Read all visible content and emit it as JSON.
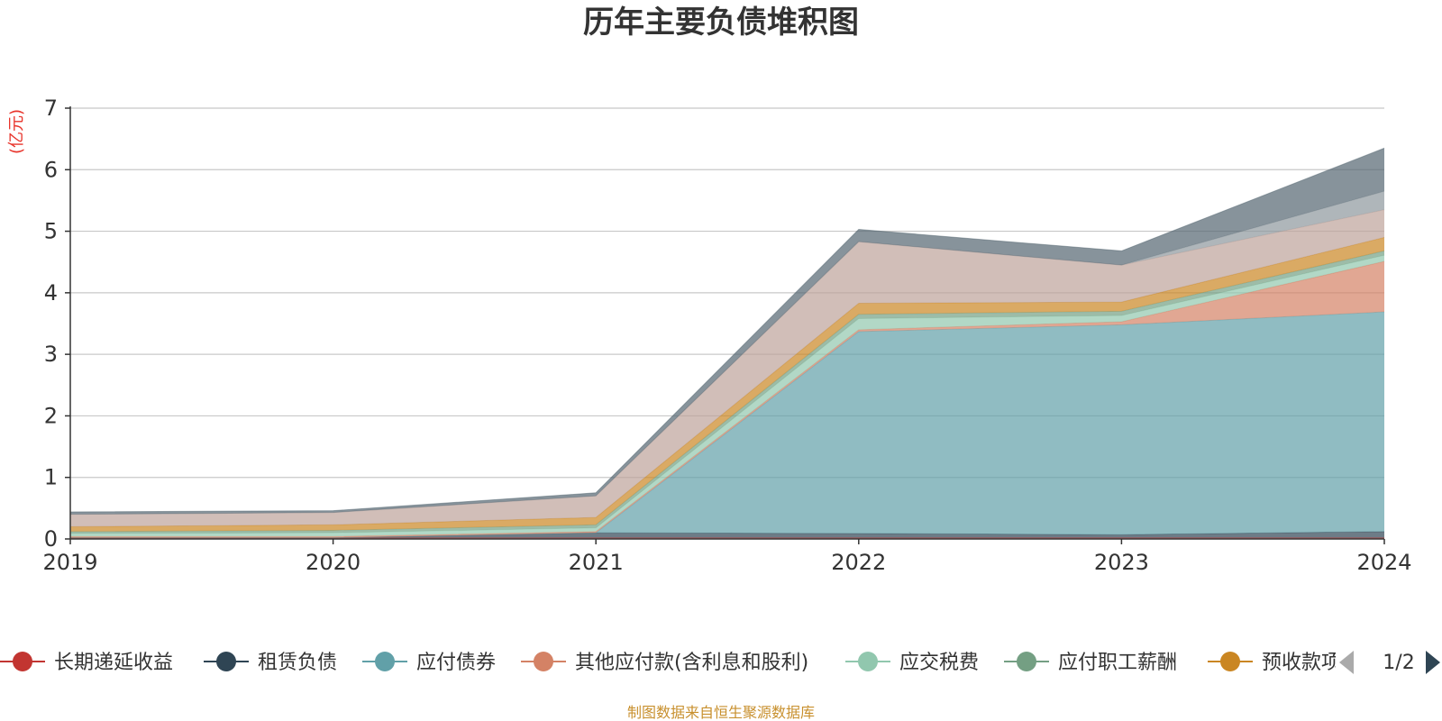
{
  "chart_data": {
    "type": "area",
    "stacked": true,
    "title": "历年主要负债堆积图",
    "unit_label": "(亿元)",
    "x": [
      "2019",
      "2020",
      "2021",
      "2022",
      "2023",
      "2024"
    ],
    "ylim": [
      0,
      7
    ],
    "yticks": [
      0,
      1,
      2,
      3,
      4,
      5,
      6,
      7
    ],
    "grid": true,
    "legend_position": "bottom",
    "series": [
      {
        "name": "长期递延收益",
        "color": "#c23531",
        "values": [
          0.02,
          0.02,
          0.02,
          0.02,
          0.02,
          0.02
        ]
      },
      {
        "name": "租赁负债",
        "color": "#2f4554",
        "values": [
          0.0,
          0.0,
          0.08,
          0.07,
          0.05,
          0.1
        ]
      },
      {
        "name": "应付债券",
        "color": "#61a0a8",
        "values": [
          0.0,
          0.0,
          0.0,
          3.28,
          3.41,
          3.57
        ]
      },
      {
        "name": "其他应付款(含利息和股利)",
        "color": "#d48265",
        "values": [
          0.02,
          0.02,
          0.02,
          0.03,
          0.05,
          0.82
        ]
      },
      {
        "name": "应交税费",
        "color": "#91c7ae",
        "values": [
          0.05,
          0.06,
          0.06,
          0.18,
          0.1,
          0.1
        ]
      },
      {
        "name": "应付职工薪酬",
        "color": "#749f83",
        "values": [
          0.03,
          0.04,
          0.05,
          0.07,
          0.07,
          0.07
        ]
      },
      {
        "name": "预收款项",
        "color": "#ca8622",
        "values": [
          0.08,
          0.09,
          0.12,
          0.18,
          0.15,
          0.22
        ]
      },
      {
        "name": "",
        "color": "#bda29a",
        "values": [
          0.2,
          0.2,
          0.35,
          1.0,
          0.6,
          0.45
        ]
      },
      {
        "name": "",
        "color": "#8d979d",
        "values": [
          0.0,
          0.0,
          0.0,
          0.0,
          0.0,
          0.3
        ]
      },
      {
        "name": "",
        "color": "#546570",
        "values": [
          0.04,
          0.03,
          0.05,
          0.2,
          0.23,
          0.7
        ]
      }
    ]
  },
  "legend": {
    "last_item_label": "预收款项",
    "pager_text": "1/2"
  },
  "source_note": "制图数据来自恒生聚源数据库"
}
